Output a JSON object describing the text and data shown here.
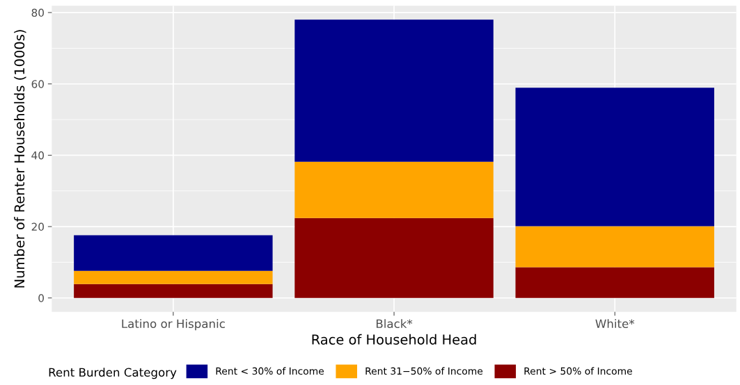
{
  "chart_data": {
    "type": "bar",
    "stacked": true,
    "xlabel": "Race of Household Head",
    "ylabel": "Number of Renter Households (1000s)",
    "legend_title": "Rent Burden Category",
    "categories": [
      "Latino or Hispanic",
      "Black*",
      "White*"
    ],
    "series": [
      {
        "name": "Rent > 50% of Income",
        "color": "#8b0000",
        "values": [
          3.9,
          22.4,
          8.6
        ]
      },
      {
        "name": "Rent 31−50% of Income",
        "color": "#ffa500",
        "values": [
          3.7,
          15.8,
          11.5
        ]
      },
      {
        "name": "Rent < 30% of Income",
        "color": "#00008b",
        "values": [
          10.0,
          39.8,
          38.8
        ]
      }
    ],
    "ylim": [
      -3.9,
      81.9
    ],
    "yticks": [
      0,
      20,
      40,
      60,
      80
    ],
    "grid": true,
    "legend": "bottom"
  }
}
